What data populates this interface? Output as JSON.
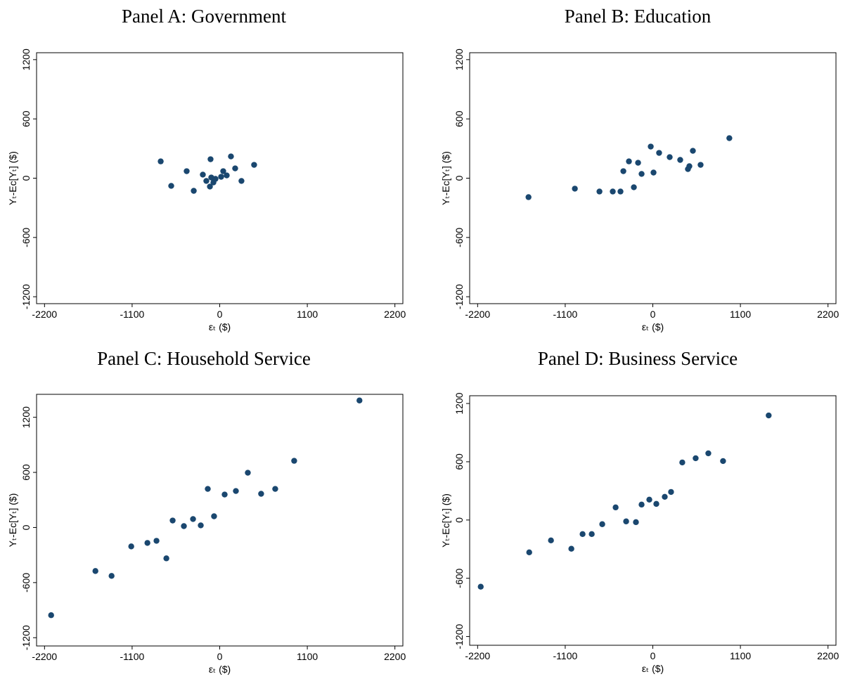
{
  "chart_data": [
    {
      "type": "scatter",
      "title": "Panel A: Government",
      "xlabel": "εₜ ($)",
      "ylabel": "Yₜ-Eᴄ[Yₜ] ($)",
      "color": "#1a476f",
      "xlim": [
        -2300,
        2300
      ],
      "ylim": [
        -1270,
        1270
      ],
      "xticks": [
        -2200,
        -1100,
        0,
        1100,
        2200
      ],
      "yticks": [
        -1200,
        -600,
        0,
        600,
        1200
      ],
      "x": [
        -741,
        -609,
        -415,
        -326,
        -212,
        -168,
        -115,
        -123,
        -106,
        -79,
        -53,
        18,
        44,
        88,
        141,
        194,
        273,
        432
      ],
      "values": [
        170,
        -78,
        71,
        -128,
        36,
        -28,
        192,
        -85,
        7,
        -43,
        -7,
        14,
        71,
        28,
        220,
        99,
        -28,
        135
      ]
    },
    {
      "type": "scatter",
      "title": "Panel B: Education",
      "xlabel": "εₜ ($)",
      "ylabel": "Yₜ-Eᴄ[Yₜ] ($)",
      "color": "#1a476f",
      "xlim": [
        -2300,
        2300
      ],
      "ylim": [
        -1270,
        1270
      ],
      "xticks": [
        -2200,
        -1100,
        0,
        1100,
        2200
      ],
      "yticks": [
        -1200,
        -600,
        0,
        600,
        1200
      ],
      "x": [
        -1561,
        -979,
        -670,
        -503,
        -406,
        -370,
        -300,
        -238,
        -185,
        -141,
        -26,
        9,
        79,
        212,
        344,
        441,
        459,
        503,
        600,
        961
      ],
      "values": [
        -192,
        -106,
        -135,
        -135,
        -135,
        71,
        170,
        -92,
        156,
        43,
        320,
        57,
        256,
        213,
        185,
        92,
        121,
        277,
        135,
        405
      ]
    },
    {
      "type": "scatter",
      "title": "Panel C: Household Service",
      "xlabel": "εₜ ($)",
      "ylabel": "Yₜ-Eᴄ[Yₜ] ($)",
      "color": "#1a476f",
      "xlim": [
        -2300,
        2300
      ],
      "ylim": [
        -1290,
        1450
      ],
      "xticks": [
        -2200,
        -1100,
        0,
        1100,
        2200
      ],
      "yticks": [
        -1200,
        -600,
        0,
        600,
        1200
      ],
      "x": [
        -2117,
        -1561,
        -1358,
        -1111,
        -908,
        -794,
        -670,
        -591,
        -450,
        -335,
        -238,
        -150,
        -71,
        62,
        203,
        353,
        520,
        697,
        935,
        1755
      ],
      "values": [
        -955,
        -474,
        -527,
        -206,
        -168,
        -145,
        -336,
        76,
        15,
        92,
        23,
        420,
        122,
        359,
        397,
        596,
        367,
        420,
        726,
        1383
      ]
    },
    {
      "type": "scatter",
      "title": "Panel D: Business Service",
      "xlabel": "εₜ ($)",
      "ylabel": "Yₜ-Eᴄ[Yₜ] ($)",
      "color": "#1a476f",
      "xlim": [
        -2300,
        2300
      ],
      "ylim": [
        -1290,
        1280
      ],
      "xticks": [
        -2200,
        -1100,
        0,
        1100,
        2200
      ],
      "yticks": [
        -1200,
        -600,
        0,
        600,
        1200
      ],
      "x": [
        -2161,
        -1552,
        -1279,
        -1023,
        -882,
        -767,
        -635,
        -467,
        -335,
        -212,
        -141,
        44,
        -44,
        150,
        229,
        370,
        538,
        697,
        882,
        1455
      ],
      "values": [
        -687,
        -333,
        -210,
        -296,
        -145,
        -145,
        -43,
        130,
        -14,
        -22,
        159,
        166,
        210,
        239,
        289,
        593,
        636,
        687,
        607,
        1077
      ]
    }
  ]
}
